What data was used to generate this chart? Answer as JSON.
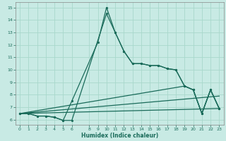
{
  "xlabel": "Humidex (Indice chaleur)",
  "bg_color": "#c8eae4",
  "grid_color": "#a8d8cc",
  "line_color": "#1a6b5a",
  "spine_color": "#888888",
  "xlim": [
    -0.5,
    23.5
  ],
  "ylim": [
    5.6,
    15.4
  ],
  "xticks": [
    0,
    1,
    2,
    3,
    4,
    5,
    6,
    8,
    9,
    10,
    11,
    12,
    13,
    14,
    15,
    16,
    17,
    18,
    19,
    20,
    21,
    22,
    23
  ],
  "yticks": [
    6,
    7,
    8,
    9,
    10,
    11,
    12,
    13,
    14,
    15
  ],
  "series": [
    {
      "x": [
        0,
        1,
        2,
        3,
        4,
        5,
        6,
        9,
        10,
        11,
        12,
        13,
        14,
        15,
        16,
        17,
        18,
        19,
        20,
        21,
        22,
        23
      ],
      "y": [
        6.5,
        6.5,
        6.3,
        6.3,
        6.2,
        5.95,
        7.5,
        12.2,
        15.0,
        13.0,
        11.5,
        10.5,
        10.5,
        10.35,
        10.35,
        10.1,
        10.0,
        8.7,
        8.4,
        6.5,
        8.4,
        6.9
      ],
      "marker": true
    },
    {
      "x": [
        0,
        1,
        2,
        3,
        4,
        5,
        6,
        10,
        11,
        12,
        13,
        14,
        15,
        16,
        17,
        18,
        19,
        20,
        21,
        22,
        23
      ],
      "y": [
        6.5,
        6.5,
        6.3,
        6.3,
        6.2,
        5.95,
        5.95,
        14.5,
        13.0,
        11.5,
        10.5,
        10.5,
        10.35,
        10.35,
        10.1,
        10.0,
        8.7,
        8.4,
        6.5,
        8.4,
        6.9
      ],
      "marker": true
    },
    {
      "x": [
        0,
        23
      ],
      "y": [
        6.5,
        6.9
      ],
      "marker": false
    },
    {
      "x": [
        0,
        23
      ],
      "y": [
        6.5,
        7.9
      ],
      "marker": false
    },
    {
      "x": [
        0,
        19,
        20,
        21,
        22,
        23
      ],
      "y": [
        6.5,
        8.7,
        8.4,
        6.5,
        8.4,
        6.9
      ],
      "marker": true
    }
  ]
}
